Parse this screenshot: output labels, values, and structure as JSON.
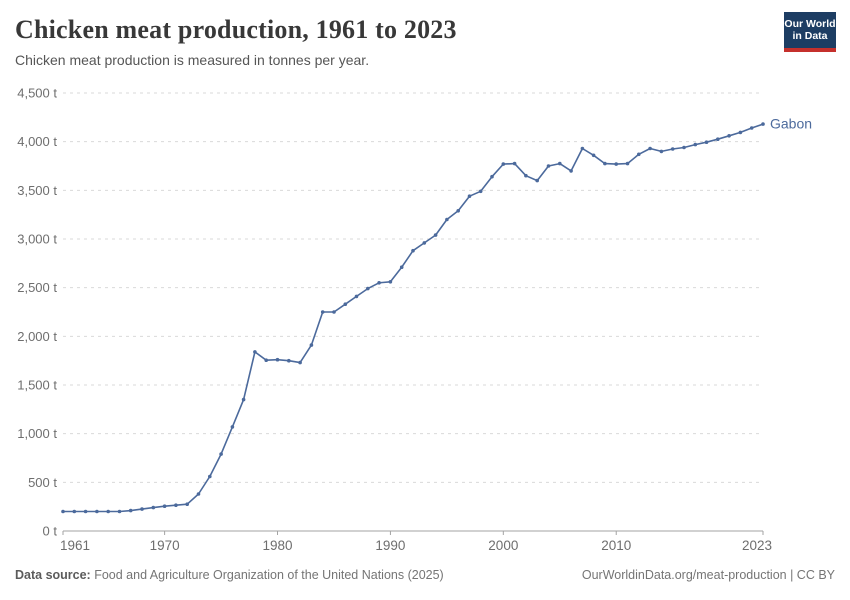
{
  "header": {
    "title": "Chicken meat production, 1961 to 2023",
    "subtitle": "Chicken meat production is measured in tonnes per year."
  },
  "logo": {
    "line1": "Our World",
    "line2": "in Data",
    "bg_color": "#1d3d63",
    "stripe_color": "#c5302c"
  },
  "footer": {
    "source_label": "Data source:",
    "source_text": " Food and Agriculture Organization of the United Nations (2025)",
    "credit": "OurWorldinData.org/meat-production | CC BY"
  },
  "chart_data": {
    "type": "line",
    "title": "Chicken meat production, 1961 to 2023",
    "xlabel": "",
    "ylabel": "tonnes per year",
    "unit": "t",
    "xlim": [
      1961,
      2023
    ],
    "ylim": [
      0,
      4500
    ],
    "grid": "horizontal-dashed",
    "legend_position": "end-of-line-label",
    "entity_label": "Gabon",
    "colors": {
      "line": "#4c6a9c",
      "gridline": "#dadada",
      "axis": "#a3a3a3",
      "tick_text": "#6e6e6e"
    },
    "x_ticks": [
      {
        "value": 1961,
        "label": "1961"
      },
      {
        "value": 1970,
        "label": "1970"
      },
      {
        "value": 1980,
        "label": "1980"
      },
      {
        "value": 1990,
        "label": "1990"
      },
      {
        "value": 2000,
        "label": "2000"
      },
      {
        "value": 2010,
        "label": "2010"
      },
      {
        "value": 2023,
        "label": "2023"
      }
    ],
    "y_ticks": [
      {
        "value": 0,
        "label": "0 t"
      },
      {
        "value": 500,
        "label": "500 t"
      },
      {
        "value": 1000,
        "label": "1,000 t"
      },
      {
        "value": 1500,
        "label": "1,500 t"
      },
      {
        "value": 2000,
        "label": "2,000 t"
      },
      {
        "value": 2500,
        "label": "2,500 t"
      },
      {
        "value": 3000,
        "label": "3,000 t"
      },
      {
        "value": 3500,
        "label": "3,500 t"
      },
      {
        "value": 4000,
        "label": "4,000 t"
      },
      {
        "value": 4500,
        "label": "4,500 t"
      }
    ],
    "series": [
      {
        "name": "Gabon",
        "color": "#4c6a9c",
        "x": [
          1961,
          1962,
          1963,
          1964,
          1965,
          1966,
          1967,
          1968,
          1969,
          1970,
          1971,
          1972,
          1973,
          1974,
          1975,
          1976,
          1977,
          1978,
          1979,
          1980,
          1981,
          1982,
          1983,
          1984,
          1985,
          1986,
          1987,
          1988,
          1989,
          1990,
          1991,
          1992,
          1993,
          1994,
          1995,
          1996,
          1997,
          1998,
          1999,
          2000,
          2001,
          2002,
          2003,
          2004,
          2005,
          2006,
          2007,
          2008,
          2009,
          2010,
          2011,
          2012,
          2013,
          2014,
          2015,
          2016,
          2017,
          2018,
          2019,
          2020,
          2021,
          2022,
          2023
        ],
        "values": [
          200,
          200,
          200,
          200,
          200,
          200,
          210,
          225,
          240,
          255,
          265,
          275,
          380,
          560,
          790,
          1070,
          1350,
          1840,
          1755,
          1760,
          1750,
          1730,
          1910,
          2250,
          2250,
          2330,
          2410,
          2490,
          2550,
          2560,
          2710,
          2880,
          2960,
          3040,
          3200,
          3290,
          3440,
          3490,
          3640,
          3770,
          3775,
          3650,
          3600,
          3750,
          3775,
          3700,
          3930,
          3860,
          3775,
          3770,
          3775,
          3870,
          3930,
          3900,
          3925,
          3940,
          3970,
          3995,
          4025,
          4060,
          4095,
          4140,
          4180
        ]
      }
    ]
  }
}
